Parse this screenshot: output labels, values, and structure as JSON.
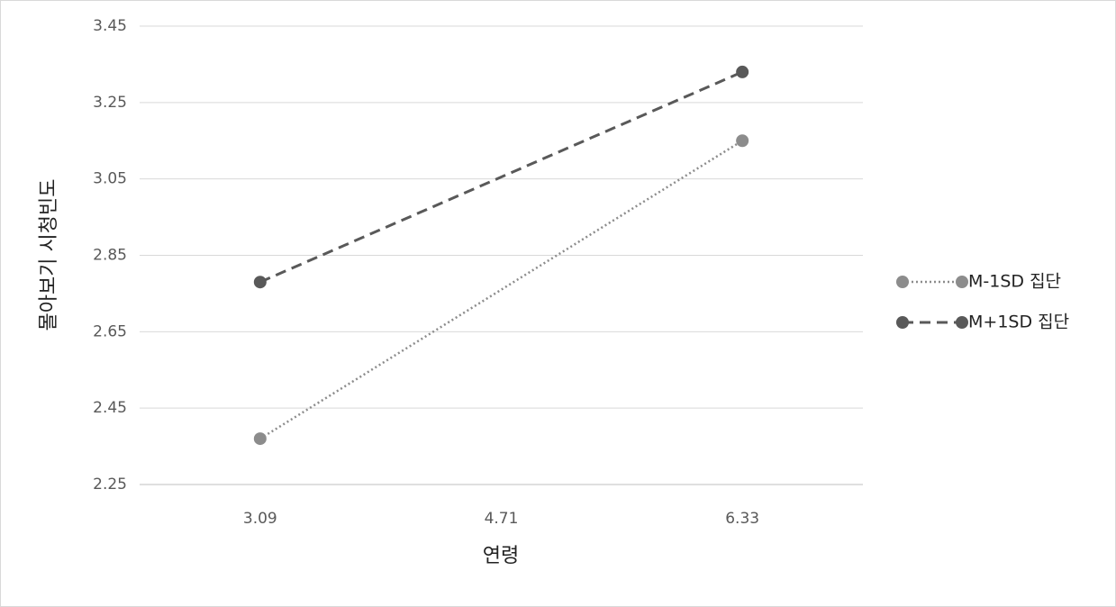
{
  "chart_data": {
    "type": "line",
    "x_label": "연령",
    "y_label": "몰아보기 시청빈도",
    "x": [
      3.09,
      6.33
    ],
    "xlim": [
      2.28,
      7.14
    ],
    "xticks": [
      3.09,
      4.71,
      6.33
    ],
    "ylim": [
      2.25,
      3.45
    ],
    "yticks": [
      2.25,
      2.45,
      2.65,
      2.85,
      3.05,
      3.25,
      3.45
    ],
    "grid": true,
    "legend": "right",
    "series": [
      {
        "name": "M-1SD 집단",
        "color": "#8c8c8c",
        "dash": "dotted",
        "values": [
          2.37,
          3.15
        ]
      },
      {
        "name": "M+1SD 집단",
        "color": "#595959",
        "dash": "dashed",
        "values": [
          2.78,
          3.33
        ]
      }
    ]
  }
}
